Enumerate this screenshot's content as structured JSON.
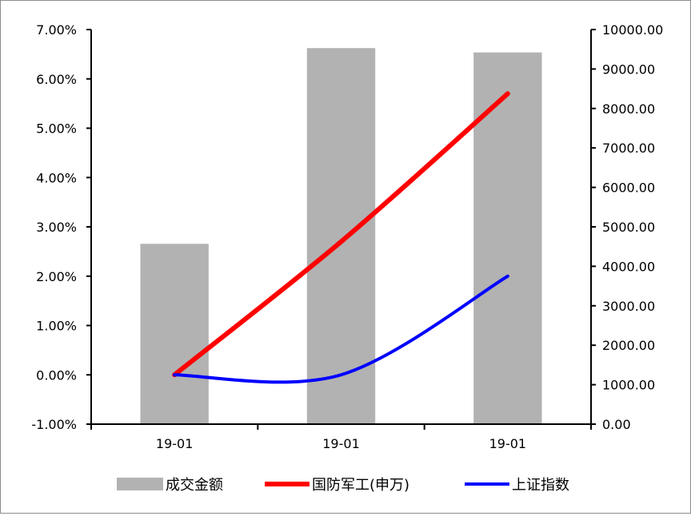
{
  "chart_data": {
    "type": "bar+line",
    "categories": [
      "19-01",
      "19-01",
      "19-01"
    ],
    "bar_series": {
      "name": "成交金额",
      "axis": "right",
      "values": [
        4570,
        9530,
        9420
      ],
      "color": "#b2b2b2"
    },
    "line_series": [
      {
        "name": "国防军工(申万)",
        "axis": "left",
        "values": [
          0.0,
          2.7,
          5.7
        ],
        "color": "#ff0000"
      },
      {
        "name": "上证指数",
        "axis": "left",
        "values": [
          0.0,
          0.0,
          2.0
        ],
        "color": "#0000ff"
      }
    ],
    "y_left": {
      "min": -1,
      "max": 7,
      "step": 1,
      "tick_labels": [
        "-1.00%",
        "0.00%",
        "1.00%",
        "2.00%",
        "3.00%",
        "4.00%",
        "5.00%",
        "6.00%",
        "7.00%"
      ]
    },
    "y_right": {
      "min": 0,
      "max": 10000,
      "step": 1000,
      "tick_labels": [
        "0.00",
        "1000.00",
        "2000.00",
        "3000.00",
        "4000.00",
        "5000.00",
        "6000.00",
        "7000.00",
        "8000.00",
        "9000.00",
        "10000.00"
      ]
    },
    "legend_position": "bottom",
    "grid": false
  }
}
